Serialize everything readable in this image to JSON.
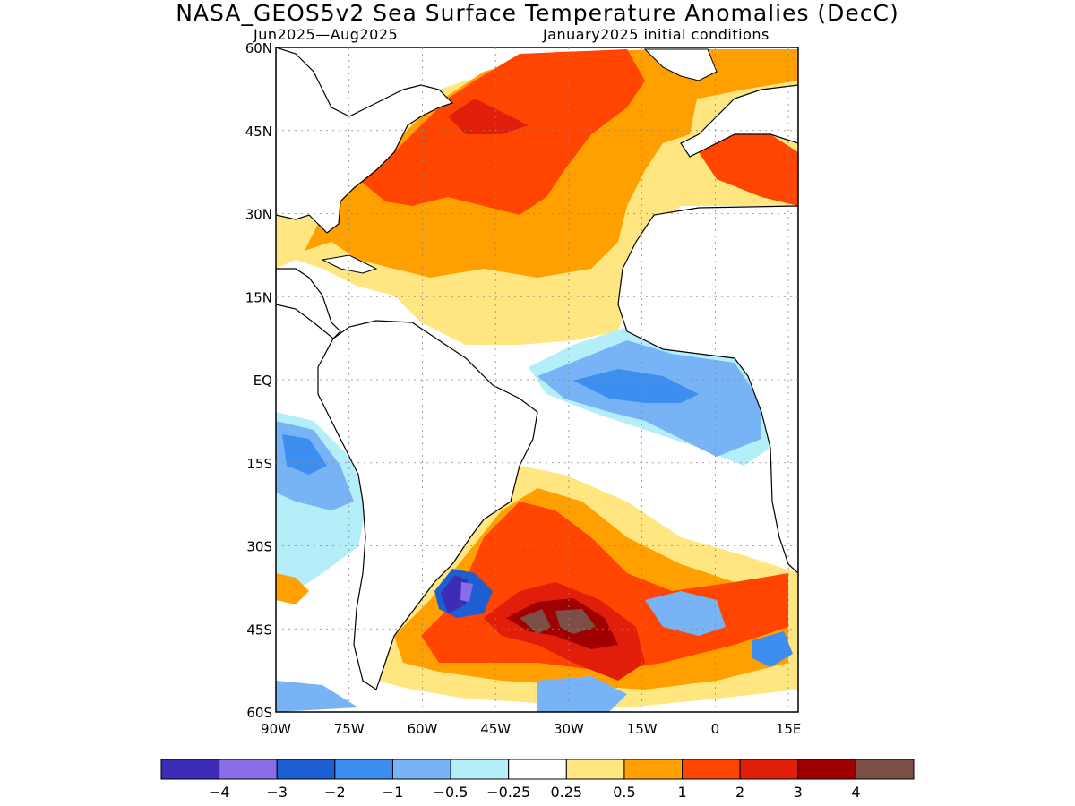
{
  "title": "NASA_GEOS5v2 Sea Surface Temperature Anomalies (DecC)",
  "period": "Jun2025—Aug2025",
  "init": "January2025 initial conditions",
  "map": {
    "lat_labels": [
      "60N",
      "45N",
      "30N",
      "15N",
      "EQ",
      "15S",
      "30S",
      "45S",
      "60S"
    ],
    "lon_labels": [
      "90W",
      "75W",
      "60W",
      "45W",
      "30W",
      "15W",
      "0",
      "15E"
    ],
    "lat_range": [
      -60,
      60
    ],
    "lon_range": [
      -90,
      17
    ],
    "grid": "dotted"
  },
  "colorbar": {
    "colors": [
      "#3c2cb8",
      "#8a6ee8",
      "#1d5fd0",
      "#3c8ef0",
      "#78b4f5",
      "#b4eef8",
      "#ffffff",
      "#ffe680",
      "#ffa000",
      "#ff4500",
      "#e01e0a",
      "#a00000",
      "#7b4f45"
    ],
    "labels": [
      "-4",
      "-3",
      "-2",
      "-1",
      "-0.5",
      "-0.25",
      "0.25",
      "0.5",
      "1",
      "2",
      "3",
      "4"
    ]
  },
  "colors": {
    "land": "#ffffff",
    "coast": "#000000",
    "c_neg4": "#3c2cb8",
    "c_neg3": "#8a6ee8",
    "c_neg2": "#1d5fd0",
    "c_neg1": "#3c8ef0",
    "c_neg05": "#78b4f5",
    "c_neg025": "#b4eef8",
    "c_025": "#ffe680",
    "c_05": "#ffa000",
    "c_1": "#ff4500",
    "c_2": "#e01e0a",
    "c_3": "#a00000",
    "c_4": "#7b4f45"
  }
}
